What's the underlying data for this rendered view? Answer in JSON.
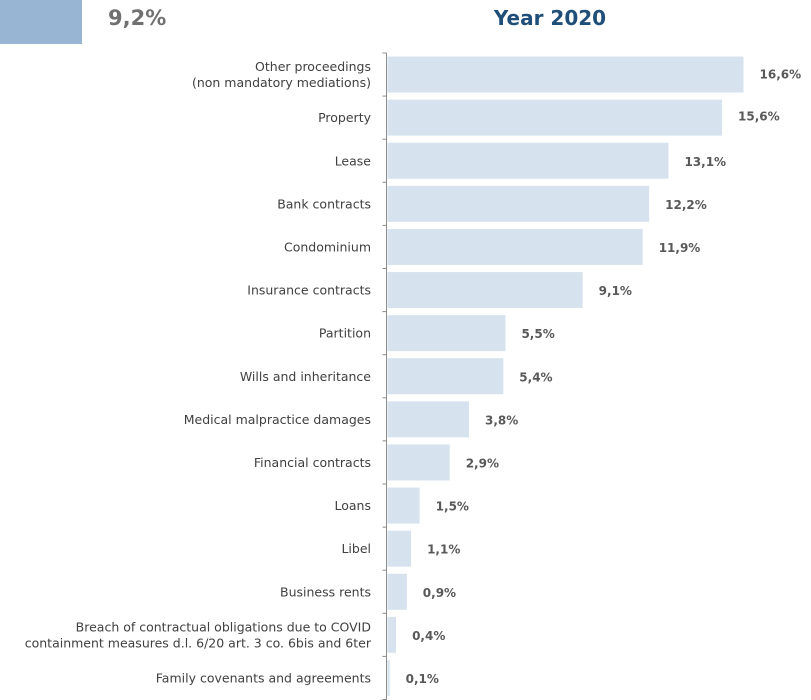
{
  "header": {
    "legend_value": "9,2%",
    "legend_color": "#98b6d3"
  },
  "chart_data": {
    "type": "bar",
    "orientation": "horizontal",
    "title": "Year 2020",
    "bar_color": "#d6e3ee",
    "categories": [
      "Other proceedings (non mandatory mediations)",
      "Property",
      "Lease",
      "Bank contracts",
      "Condominium",
      "Insurance contracts",
      "Partition",
      "Wills  and inheritance",
      "Medical malpractice damages",
      "Financial contracts",
      "Loans",
      "Libel",
      "Business rents",
      "Breach of contractual obligations due to COVID containment measures d.l. 6/20 art. 3 co. 6bis and 6ter",
      "Family covenants and agreements"
    ],
    "category_lines": [
      [
        "Other proceedings",
        "(non mandatory mediations)"
      ],
      [
        "Property"
      ],
      [
        "Lease"
      ],
      [
        "Bank contracts"
      ],
      [
        "Condominium"
      ],
      [
        "Insurance contracts"
      ],
      [
        "Partition"
      ],
      [
        "Wills  and inheritance"
      ],
      [
        "Medical malpractice damages"
      ],
      [
        "Financial contracts"
      ],
      [
        "Loans"
      ],
      [
        "Libel"
      ],
      [
        "Business rents"
      ],
      [
        "Breach of contractual obligations due to COVID",
        "containment measures d.l. 6/20 art. 3 co. 6bis and 6ter"
      ],
      [
        "Family covenants and agreements"
      ]
    ],
    "values": [
      16.6,
      15.6,
      13.1,
      12.2,
      11.9,
      9.1,
      5.5,
      5.4,
      3.8,
      2.9,
      1.5,
      1.1,
      0.9,
      0.4,
      0.1
    ],
    "value_labels": [
      "16,6%",
      "15,6%",
      "13,1%",
      "12,2%",
      "11,9%",
      "9,1%",
      "5,5%",
      "5,4%",
      "3,8%",
      "2,9%",
      "1,5%",
      "1,1%",
      "0,9%",
      "0,4%",
      "0,1%"
    ],
    "xlim": [
      0,
      16.6
    ]
  }
}
